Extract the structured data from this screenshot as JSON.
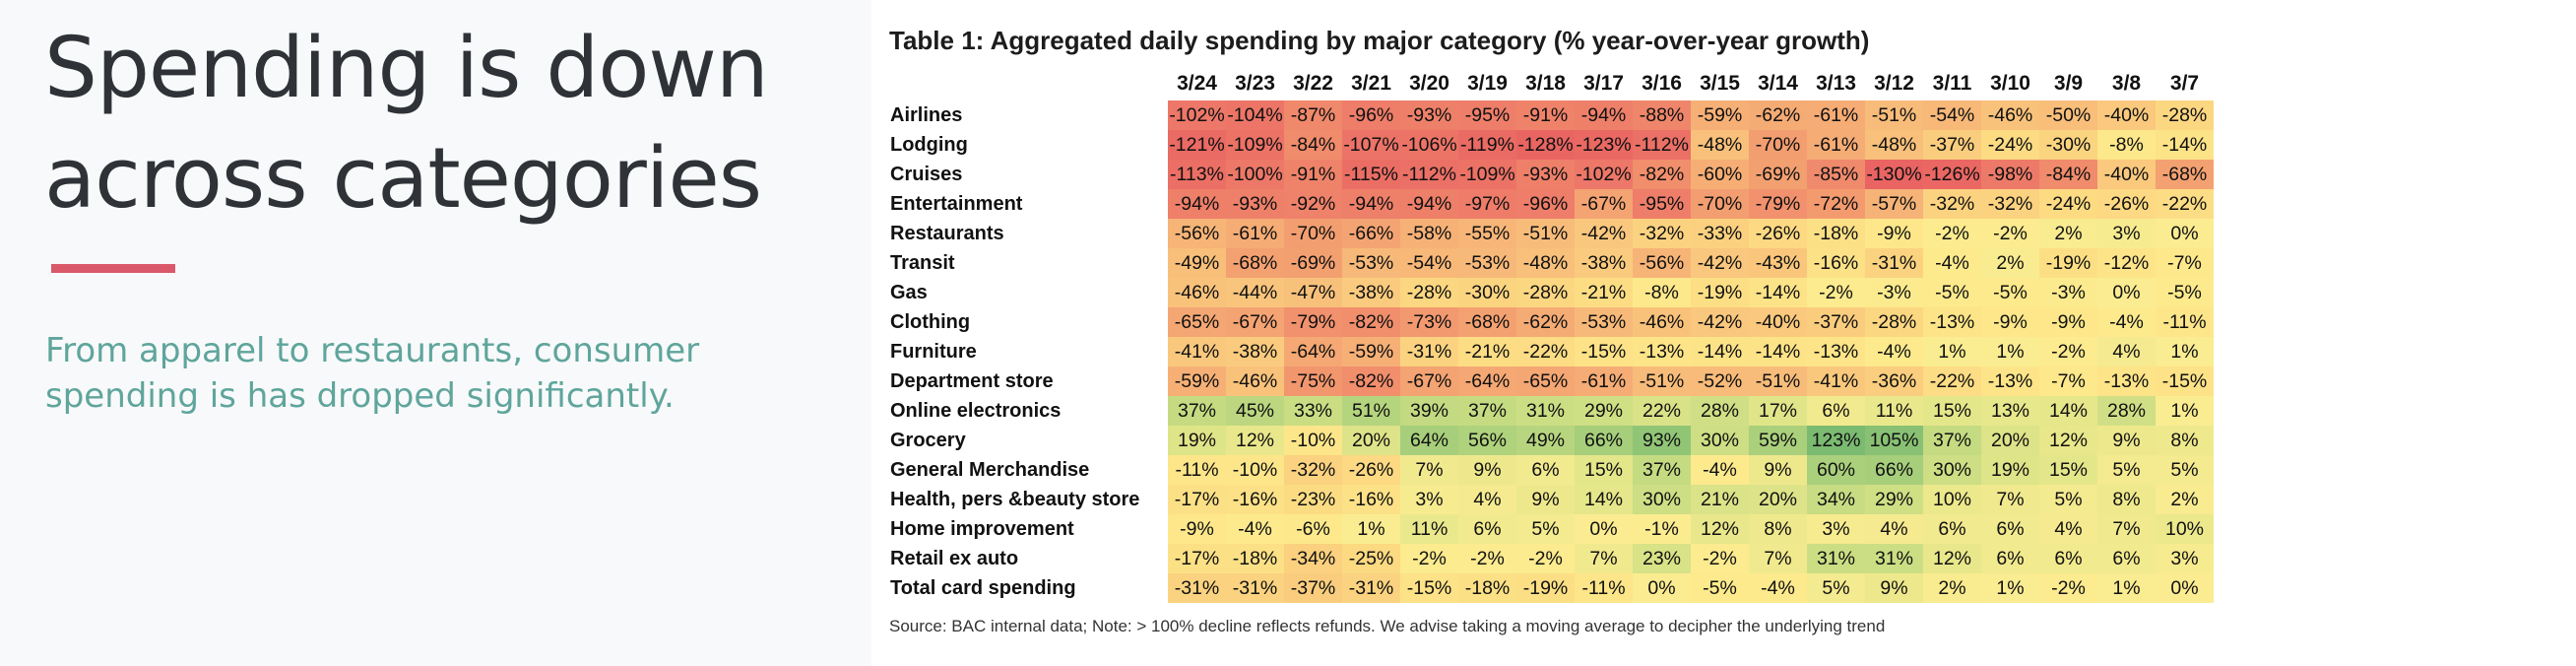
{
  "slide": {
    "title_line1": "Spending is down",
    "title_line2": "across categories",
    "subtitle_line1": "From apparel to restaurants, consumer",
    "subtitle_line2": "spending is has dropped significantly.",
    "accent_color": "#d9596a",
    "subtitle_color": "#5fa59c"
  },
  "table": {
    "caption": "Table 1: Aggregated daily spending by major category (% year-over-year growth)",
    "columns": [
      "3/24",
      "3/23",
      "3/22",
      "3/21",
      "3/20",
      "3/19",
      "3/18",
      "3/17",
      "3/16",
      "3/15",
      "3/14",
      "3/13",
      "3/12",
      "3/11",
      "3/10",
      "3/9",
      "3/8",
      "3/7"
    ],
    "rows": [
      {
        "label": "Airlines",
        "values": [
          -102,
          -104,
          -87,
          -96,
          -93,
          -95,
          -91,
          -94,
          -88,
          -59,
          -62,
          -61,
          -51,
          -54,
          -46,
          -50,
          -40,
          -28
        ]
      },
      {
        "label": "Lodging",
        "values": [
          -121,
          -109,
          -84,
          -107,
          -106,
          -119,
          -128,
          -123,
          -112,
          -48,
          -70,
          -61,
          -48,
          -37,
          -24,
          -30,
          -8,
          -14
        ]
      },
      {
        "label": "Cruises",
        "values": [
          -113,
          -100,
          -91,
          -115,
          -112,
          -109,
          -93,
          -102,
          -82,
          -60,
          -69,
          -85,
          -130,
          -126,
          -98,
          -84,
          -40,
          -68
        ]
      },
      {
        "label": "Entertainment",
        "values": [
          -94,
          -93,
          -92,
          -94,
          -94,
          -97,
          -96,
          -67,
          -95,
          -70,
          -79,
          -72,
          -57,
          -32,
          -32,
          -24,
          -26,
          -22
        ]
      },
      {
        "label": "Restaurants",
        "values": [
          -56,
          -61,
          -70,
          -66,
          -58,
          -55,
          -51,
          -42,
          -32,
          -33,
          -26,
          -18,
          -9,
          -2,
          -2,
          2,
          3,
          0
        ]
      },
      {
        "label": "Transit",
        "values": [
          -49,
          -68,
          -69,
          -53,
          -54,
          -53,
          -48,
          -38,
          -56,
          -42,
          -43,
          -16,
          -31,
          -4,
          2,
          -19,
          -12,
          -7
        ]
      },
      {
        "label": "Gas",
        "values": [
          -46,
          -44,
          -47,
          -38,
          -28,
          -30,
          -28,
          -21,
          -8,
          -19,
          -14,
          -2,
          -3,
          -5,
          -5,
          -3,
          0,
          -5
        ]
      },
      {
        "label": "Clothing",
        "values": [
          -65,
          -67,
          -79,
          -82,
          -73,
          -68,
          -62,
          -53,
          -46,
          -42,
          -40,
          -37,
          -28,
          -13,
          -9,
          -9,
          -4,
          -11
        ]
      },
      {
        "label": "Furniture",
        "values": [
          -41,
          -38,
          -64,
          -59,
          -31,
          -21,
          -22,
          -15,
          -13,
          -14,
          -14,
          -13,
          -4,
          1,
          1,
          -2,
          4,
          1
        ]
      },
      {
        "label": "Department store",
        "values": [
          -59,
          -46,
          -75,
          -82,
          -67,
          -64,
          -65,
          -61,
          -51,
          -52,
          -51,
          -41,
          -36,
          -22,
          -13,
          -7,
          -13,
          -15
        ]
      },
      {
        "label": "Online electronics",
        "values": [
          37,
          45,
          33,
          51,
          39,
          37,
          31,
          29,
          22,
          28,
          17,
          6,
          11,
          15,
          13,
          14,
          28,
          1
        ]
      },
      {
        "label": "Grocery",
        "values": [
          19,
          12,
          -10,
          20,
          64,
          56,
          49,
          66,
          93,
          30,
          59,
          123,
          105,
          37,
          20,
          12,
          9,
          8
        ]
      },
      {
        "label": "General Merchandise",
        "values": [
          -11,
          -10,
          -32,
          -26,
          7,
          9,
          6,
          15,
          37,
          -4,
          9,
          60,
          66,
          30,
          19,
          15,
          5,
          5
        ]
      },
      {
        "label": "Health, pers &beauty store",
        "values": [
          -17,
          -16,
          -23,
          -16,
          3,
          4,
          9,
          14,
          30,
          21,
          20,
          34,
          29,
          10,
          7,
          5,
          8,
          2
        ]
      },
      {
        "label": "Home improvement",
        "values": [
          -9,
          -4,
          -6,
          1,
          11,
          6,
          5,
          0,
          -1,
          12,
          8,
          3,
          4,
          6,
          6,
          4,
          7,
          10
        ]
      },
      {
        "label": "Retail ex auto",
        "values": [
          -17,
          -18,
          -34,
          -25,
          -2,
          -2,
          -2,
          7,
          23,
          -2,
          7,
          31,
          31,
          12,
          6,
          6,
          6,
          3
        ]
      },
      {
        "label": "Total card spending",
        "values": [
          -31,
          -31,
          -37,
          -31,
          -15,
          -18,
          -19,
          -11,
          0,
          -5,
          -4,
          5,
          9,
          2,
          1,
          -2,
          1,
          0
        ]
      }
    ],
    "source_note": "Source: BAC internal data; Note: > 100% decline reflects refunds. We advise taking a moving average to decipher the underlying trend"
  }
}
